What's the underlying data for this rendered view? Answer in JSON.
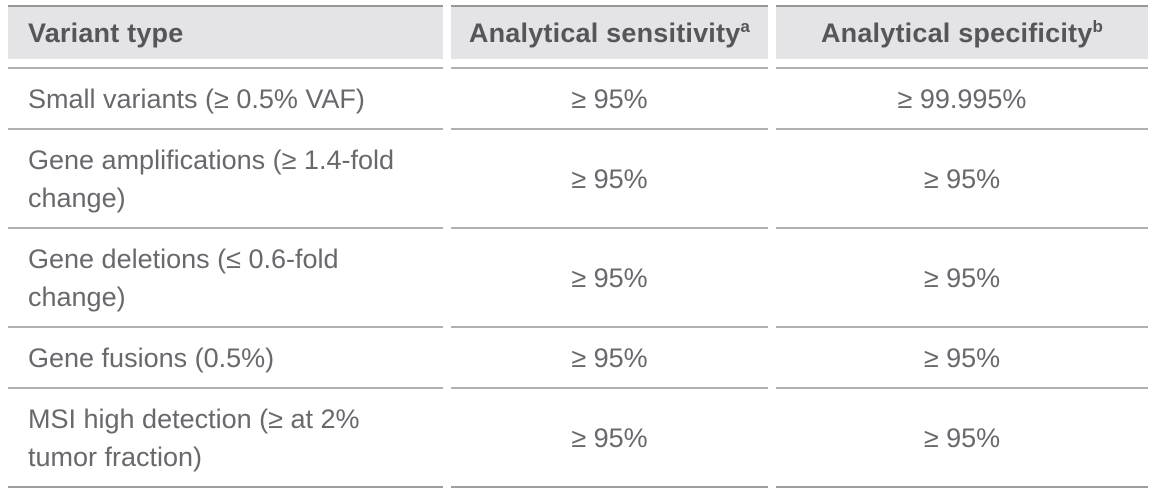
{
  "colors": {
    "header_bg": "#e4e4e6",
    "header_text": "#55565a",
    "body_text": "#68696d",
    "header_top_border": "#96989a",
    "row_rule": "#aeb0b2",
    "bottom_border": "#9c9ea0",
    "page_bg": "#ffffff"
  },
  "table": {
    "columns": [
      {
        "label": "Variant type",
        "sup": ""
      },
      {
        "label": "Analytical sensitivity",
        "sup": "a"
      },
      {
        "label": "Analytical specificity",
        "sup": "b"
      }
    ],
    "rows": [
      {
        "variant": "Small variants (≥ 0.5% VAF)",
        "sensitivity": "≥ 95%",
        "specificity": "≥ 99.995%"
      },
      {
        "variant": "Gene amplifications (≥ 1.4-fold change)",
        "sensitivity": "≥ 95%",
        "specificity": "≥ 95%"
      },
      {
        "variant": "Gene deletions (≤ 0.6-fold change)",
        "sensitivity": "≥ 95%",
        "specificity": "≥ 95%"
      },
      {
        "variant": "Gene fusions (0.5%)",
        "sensitivity": "≥ 95%",
        "specificity": "≥ 95%"
      },
      {
        "variant": "MSI high detection (≥ at 2% tumor fraction)",
        "sensitivity": "≥ 95%",
        "specificity": "≥ 95%"
      }
    ]
  },
  "chart_data": {
    "type": "table",
    "title": "",
    "columns": [
      "Variant type",
      "Analytical sensitivity (a)",
      "Analytical specificity (b)"
    ],
    "rows": [
      [
        "Small variants (≥ 0.5% VAF)",
        "≥ 95%",
        "≥ 99.995%"
      ],
      [
        "Gene amplifications (≥ 1.4-fold change)",
        "≥ 95%",
        "≥ 95%"
      ],
      [
        "Gene deletions (≤ 0.6-fold change)",
        "≥ 95%",
        "≥ 95%"
      ],
      [
        "Gene fusions (0.5%)",
        "≥ 95%",
        "≥ 95%"
      ],
      [
        "MSI high detection (≥ at 2% tumor fraction)",
        "≥ 95%",
        "≥ 95%"
      ]
    ]
  }
}
